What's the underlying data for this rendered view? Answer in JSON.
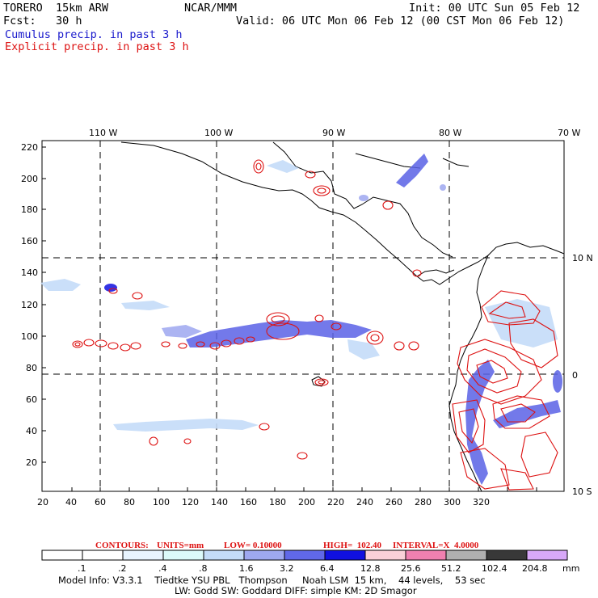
{
  "header": {
    "model": "TORERO  15km ARW",
    "org": "NCAR/MMM",
    "init": "Init: 00 UTC Sun 05 Feb 12",
    "fcst": "Fcst:   30 h",
    "valid": "Valid: 06 UTC Mon 06 Feb 12 (00 CST Mon 06 Feb 12)",
    "cumulus": "Cumulus precip. in past 3 h",
    "explicit": "Explicit precip. in past 3 h"
  },
  "axes": {
    "top": [
      "110 W",
      "100 W",
      "90 W",
      "80 W",
      "70 W"
    ],
    "right": [
      "10 N",
      "0",
      "10 S"
    ],
    "left": [
      "220",
      "200",
      "180",
      "160",
      "140",
      "120",
      "100",
      "80",
      "60",
      "40",
      "20"
    ],
    "bottom": [
      "20",
      "40",
      "60",
      "80",
      "100",
      "120",
      "140",
      "160",
      "180",
      "200",
      "220",
      "240",
      "260",
      "280",
      "300",
      "320"
    ]
  },
  "contours_line": {
    "label": "CONTOURS:",
    "units": "UNITS=mm",
    "low": "LOW= 0.10000",
    "high": "HIGH=  102.40",
    "interval": "INTERVAL=X  4.0000"
  },
  "legend": {
    "labels": [
      ".1",
      ".2",
      ".4",
      ".8",
      "1.6",
      "3.2",
      "6.4",
      "12.8",
      "25.6",
      "51.2",
      "102.4",
      "204.8"
    ],
    "unit": "mm",
    "colors": [
      "#ffffff",
      "#ffffff",
      "#e8f4ff",
      "#dcfafa",
      "#c4dcf8",
      "#9ea8f0",
      "#6068e8",
      "#1010e0",
      "#fad0d8",
      "#f080b0",
      "#b0b0b0",
      "#383838",
      "#d8a8f8"
    ]
  },
  "footer": {
    "line1": "Model Info: V3.3.1    Tiedtke YSU PBL   Thompson     Noah LSM  15 km,    44 levels,    53 sec",
    "line2": "LW: Godd SW: Goddard DIFF: simple KM: 2D Smagor"
  },
  "colors": {
    "cumulus": "#1a1acc",
    "explicit": "#dd1111",
    "grid": "#000000"
  }
}
